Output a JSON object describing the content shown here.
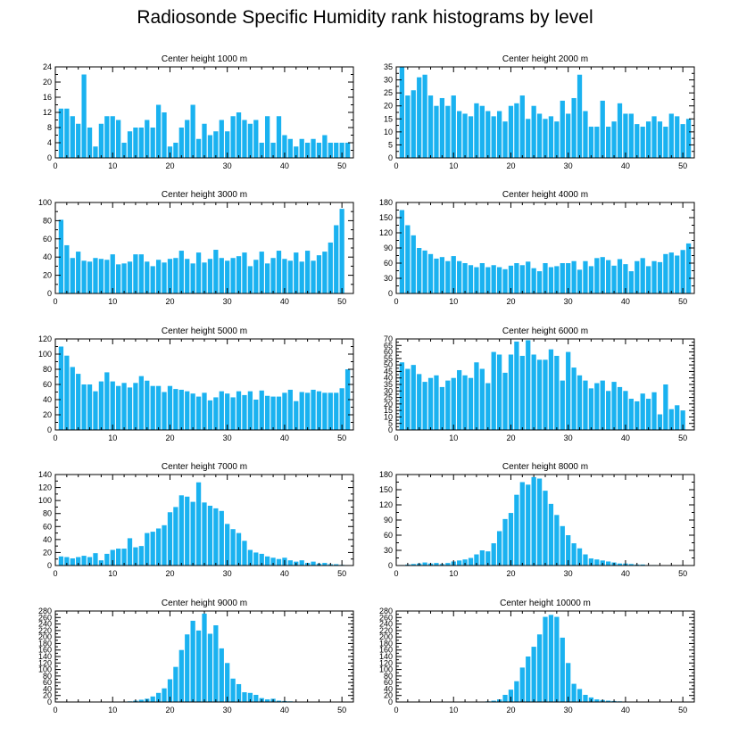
{
  "title": "Radiosonde Specific Humidity rank histograms by level",
  "colors": {
    "bar": "#1ab2f0",
    "axis": "#000000"
  },
  "chart_data": [
    {
      "type": "bar",
      "title": "Center height 1000 m",
      "xlim": [
        0,
        52
      ],
      "ylim": [
        0,
        24
      ],
      "xticks": [
        0,
        10,
        20,
        30,
        40,
        50
      ],
      "yticks": [
        0,
        4,
        8,
        12,
        16,
        20,
        24
      ],
      "x": [
        1,
        2,
        3,
        4,
        5,
        6,
        7,
        8,
        9,
        10,
        11,
        12,
        13,
        14,
        15,
        16,
        17,
        18,
        19,
        20,
        21,
        22,
        23,
        24,
        25,
        26,
        27,
        28,
        29,
        30,
        31,
        32,
        33,
        34,
        35,
        36,
        37,
        38,
        39,
        40,
        41,
        42,
        43,
        44,
        45,
        46,
        47,
        48,
        49,
        50,
        51
      ],
      "values": [
        13,
        13,
        11,
        9,
        22,
        8,
        3,
        9,
        11,
        11,
        10,
        4,
        7,
        8,
        8,
        10,
        8,
        14,
        12,
        3,
        4,
        8,
        10,
        14,
        5,
        9,
        6,
        7,
        10,
        7,
        11,
        12,
        10,
        9,
        10,
        4,
        11,
        4,
        11,
        6,
        5,
        3,
        5,
        4,
        5,
        4,
        6,
        4,
        4,
        4,
        4
      ]
    },
    {
      "type": "bar",
      "title": "Center height 2000 m",
      "xlim": [
        0,
        52
      ],
      "ylim": [
        0,
        35
      ],
      "xticks": [
        0,
        10,
        20,
        30,
        40,
        50
      ],
      "yticks": [
        0,
        5,
        10,
        15,
        20,
        25,
        30,
        35
      ],
      "x": [
        1,
        2,
        3,
        4,
        5,
        6,
        7,
        8,
        9,
        10,
        11,
        12,
        13,
        14,
        15,
        16,
        17,
        18,
        19,
        20,
        21,
        22,
        23,
        24,
        25,
        26,
        27,
        28,
        29,
        30,
        31,
        32,
        33,
        34,
        35,
        36,
        37,
        38,
        39,
        40,
        41,
        42,
        43,
        44,
        45,
        46,
        47,
        48,
        49,
        50,
        51
      ],
      "values": [
        35,
        24,
        26,
        31,
        32,
        24,
        20,
        23,
        20,
        24,
        18,
        17,
        16,
        21,
        20,
        18,
        16,
        18,
        14,
        20,
        21,
        24,
        15,
        20,
        17,
        15,
        16,
        14,
        22,
        17,
        23,
        32,
        18,
        12,
        12,
        22,
        12,
        14,
        21,
        17,
        17,
        13,
        12,
        14,
        16,
        14,
        12,
        17,
        16,
        13,
        15
      ]
    },
    {
      "type": "bar",
      "title": "Center height 3000 m",
      "xlim": [
        0,
        52
      ],
      "ylim": [
        0,
        100
      ],
      "xticks": [
        0,
        10,
        20,
        30,
        40,
        50
      ],
      "yticks": [
        0,
        20,
        40,
        60,
        80,
        100
      ],
      "x": [
        1,
        2,
        3,
        4,
        5,
        6,
        7,
        8,
        9,
        10,
        11,
        12,
        13,
        14,
        15,
        16,
        17,
        18,
        19,
        20,
        21,
        22,
        23,
        24,
        25,
        26,
        27,
        28,
        29,
        30,
        31,
        32,
        33,
        34,
        35,
        36,
        37,
        38,
        39,
        40,
        41,
        42,
        43,
        44,
        45,
        46,
        47,
        48,
        49,
        50,
        51
      ],
      "values": [
        81,
        53,
        39,
        46,
        36,
        35,
        39,
        38,
        37,
        43,
        32,
        33,
        35,
        43,
        43,
        35,
        30,
        37,
        34,
        38,
        39,
        47,
        38,
        33,
        45,
        34,
        38,
        48,
        39,
        36,
        39,
        41,
        45,
        30,
        37,
        46,
        33,
        39,
        47,
        38,
        36,
        45,
        35,
        47,
        36,
        42,
        46,
        56,
        75,
        93,
        0
      ]
    },
    {
      "type": "bar",
      "title": "Center height 4000 m",
      "xlim": [
        0,
        52
      ],
      "ylim": [
        0,
        180
      ],
      "xticks": [
        0,
        10,
        20,
        30,
        40,
        50
      ],
      "yticks": [
        0,
        30,
        60,
        90,
        120,
        150,
        180
      ],
      "x": [
        1,
        2,
        3,
        4,
        5,
        6,
        7,
        8,
        9,
        10,
        11,
        12,
        13,
        14,
        15,
        16,
        17,
        18,
        19,
        20,
        21,
        22,
        23,
        24,
        25,
        26,
        27,
        28,
        29,
        30,
        31,
        32,
        33,
        34,
        35,
        36,
        37,
        38,
        39,
        40,
        41,
        42,
        43,
        44,
        45,
        46,
        47,
        48,
        49,
        50,
        51
      ],
      "values": [
        165,
        135,
        115,
        90,
        85,
        78,
        69,
        72,
        64,
        74,
        64,
        60,
        56,
        52,
        60,
        52,
        56,
        52,
        48,
        55,
        60,
        56,
        63,
        50,
        44,
        60,
        52,
        54,
        60,
        60,
        64,
        47,
        64,
        54,
        70,
        72,
        66,
        55,
        68,
        58,
        44,
        64,
        70,
        54,
        64,
        62,
        78,
        81,
        75,
        86,
        99
      ]
    },
    {
      "type": "bar",
      "title": "Center height 5000 m",
      "xlim": [
        0,
        52
      ],
      "ylim": [
        0,
        120
      ],
      "xticks": [
        0,
        10,
        20,
        30,
        40,
        50
      ],
      "yticks": [
        0,
        20,
        40,
        60,
        80,
        100,
        120
      ],
      "x": [
        1,
        2,
        3,
        4,
        5,
        6,
        7,
        8,
        9,
        10,
        11,
        12,
        13,
        14,
        15,
        16,
        17,
        18,
        19,
        20,
        21,
        22,
        23,
        24,
        25,
        26,
        27,
        28,
        29,
        30,
        31,
        32,
        33,
        34,
        35,
        36,
        37,
        38,
        39,
        40,
        41,
        42,
        43,
        44,
        45,
        46,
        47,
        48,
        49,
        50,
        51
      ],
      "values": [
        110,
        98,
        83,
        74,
        60,
        60,
        51,
        64,
        76,
        64,
        58,
        62,
        56,
        62,
        71,
        65,
        58,
        58,
        50,
        58,
        54,
        53,
        51,
        48,
        44,
        49,
        39,
        43,
        51,
        48,
        43,
        51,
        46,
        51,
        40,
        52,
        45,
        44,
        44,
        49,
        53,
        38,
        50,
        49,
        53,
        51,
        49,
        49,
        49,
        55,
        80
      ]
    },
    {
      "type": "bar",
      "title": "Center height 6000 m",
      "xlim": [
        0,
        52
      ],
      "ylim": [
        0,
        70
      ],
      "xticks": [
        0,
        10,
        20,
        30,
        40,
        50
      ],
      "yticks": [
        0,
        5,
        10,
        15,
        20,
        25,
        30,
        35,
        40,
        45,
        50,
        55,
        60,
        65,
        70
      ],
      "x": [
        1,
        2,
        3,
        4,
        5,
        6,
        7,
        8,
        9,
        10,
        11,
        12,
        13,
        14,
        15,
        16,
        17,
        18,
        19,
        20,
        21,
        22,
        23,
        24,
        25,
        26,
        27,
        28,
        29,
        30,
        31,
        32,
        33,
        34,
        35,
        36,
        37,
        38,
        39,
        40,
        41,
        42,
        43,
        44,
        45,
        46,
        47,
        48,
        49,
        50,
        51
      ],
      "values": [
        52,
        47,
        50,
        43,
        37,
        40,
        42,
        33,
        38,
        40,
        46,
        42,
        40,
        52,
        47,
        36,
        60,
        58,
        44,
        58,
        68,
        57,
        69,
        58,
        54,
        54,
        62,
        57,
        38,
        60,
        48,
        42,
        38,
        32,
        36,
        38,
        30,
        37,
        33,
        30,
        24,
        22,
        28,
        24,
        29,
        12,
        35,
        16,
        19,
        15,
        0
      ]
    },
    {
      "type": "bar",
      "title": "Center height 7000 m",
      "xlim": [
        0,
        52
      ],
      "ylim": [
        0,
        140
      ],
      "xticks": [
        0,
        10,
        20,
        30,
        40,
        50
      ],
      "yticks": [
        0,
        20,
        40,
        60,
        80,
        100,
        120,
        140
      ],
      "x": [
        1,
        2,
        3,
        4,
        5,
        6,
        7,
        8,
        9,
        10,
        11,
        12,
        13,
        14,
        15,
        16,
        17,
        18,
        19,
        20,
        21,
        22,
        23,
        24,
        25,
        26,
        27,
        28,
        29,
        30,
        31,
        32,
        33,
        34,
        35,
        36,
        37,
        38,
        39,
        40,
        41,
        42,
        43,
        44,
        45,
        46,
        47,
        48,
        49,
        50,
        51
      ],
      "values": [
        14,
        13,
        11,
        13,
        15,
        13,
        19,
        8,
        18,
        24,
        26,
        26,
        42,
        28,
        30,
        50,
        52,
        57,
        62,
        82,
        90,
        108,
        106,
        98,
        128,
        97,
        92,
        88,
        84,
        64,
        56,
        50,
        38,
        24,
        20,
        18,
        14,
        12,
        10,
        12,
        8,
        6,
        8,
        4,
        6,
        3,
        4,
        2,
        2,
        1,
        0
      ]
    },
    {
      "type": "bar",
      "title": "Center height 8000 m",
      "xlim": [
        0,
        52
      ],
      "ylim": [
        0,
        180
      ],
      "xticks": [
        0,
        10,
        20,
        30,
        40,
        50
      ],
      "yticks": [
        0,
        30,
        60,
        90,
        120,
        150,
        180
      ],
      "x": [
        1,
        2,
        3,
        4,
        5,
        6,
        7,
        8,
        9,
        10,
        11,
        12,
        13,
        14,
        15,
        16,
        17,
        18,
        19,
        20,
        21,
        22,
        23,
        24,
        25,
        26,
        27,
        28,
        29,
        30,
        31,
        32,
        33,
        34,
        35,
        36,
        37,
        38,
        39,
        40,
        41,
        42,
        43,
        44,
        45,
        46,
        47,
        48,
        49,
        50,
        51
      ],
      "values": [
        1,
        2,
        3,
        4,
        6,
        4,
        5,
        3,
        5,
        8,
        10,
        12,
        15,
        22,
        30,
        28,
        44,
        68,
        92,
        104,
        140,
        165,
        160,
        175,
        172,
        148,
        122,
        100,
        78,
        60,
        44,
        34,
        22,
        14,
        12,
        10,
        8,
        6,
        4,
        4,
        3,
        2,
        2,
        1,
        1,
        0,
        0,
        0,
        0,
        0,
        0
      ]
    },
    {
      "type": "bar",
      "title": "Center height 9000 m",
      "xlim": [
        0,
        52
      ],
      "ylim": [
        0,
        280
      ],
      "xticks": [
        0,
        10,
        20,
        30,
        40,
        50
      ],
      "yticks": [
        0,
        20,
        40,
        60,
        80,
        100,
        120,
        140,
        160,
        180,
        200,
        220,
        240,
        260,
        280
      ],
      "x": [
        1,
        2,
        3,
        4,
        5,
        6,
        7,
        8,
        9,
        10,
        11,
        12,
        13,
        14,
        15,
        16,
        17,
        18,
        19,
        20,
        21,
        22,
        23,
        24,
        25,
        26,
        27,
        28,
        29,
        30,
        31,
        32,
        33,
        34,
        35,
        36,
        37,
        38,
        39,
        40,
        41,
        42,
        43,
        44,
        45,
        46,
        47,
        48,
        49,
        50,
        51
      ],
      "values": [
        0,
        0,
        0,
        0,
        0,
        0,
        0,
        0,
        0,
        0,
        1,
        1,
        2,
        4,
        7,
        10,
        17,
        28,
        42,
        70,
        108,
        160,
        208,
        250,
        220,
        272,
        210,
        236,
        165,
        120,
        72,
        55,
        30,
        28,
        22,
        12,
        8,
        10,
        4,
        3,
        2,
        1,
        0,
        0,
        0,
        0,
        0,
        0,
        0,
        0,
        0
      ]
    },
    {
      "type": "bar",
      "title": "Center height 10000 m",
      "xlim": [
        0,
        52
      ],
      "ylim": [
        0,
        280
      ],
      "xticks": [
        0,
        10,
        20,
        30,
        40,
        50
      ],
      "yticks": [
        0,
        20,
        40,
        60,
        80,
        100,
        120,
        140,
        160,
        180,
        200,
        220,
        240,
        260,
        280
      ],
      "x": [
        1,
        2,
        3,
        4,
        5,
        6,
        7,
        8,
        9,
        10,
        11,
        12,
        13,
        14,
        15,
        16,
        17,
        18,
        19,
        20,
        21,
        22,
        23,
        24,
        25,
        26,
        27,
        28,
        29,
        30,
        31,
        32,
        33,
        34,
        35,
        36,
        37,
        38,
        39,
        40,
        41,
        42,
        43,
        44,
        45,
        46,
        47,
        48,
        49,
        50,
        51
      ],
      "values": [
        0,
        0,
        0,
        0,
        0,
        0,
        0,
        0,
        0,
        0,
        0,
        0,
        0,
        0,
        0,
        2,
        4,
        8,
        22,
        38,
        64,
        106,
        140,
        170,
        208,
        262,
        268,
        262,
        198,
        120,
        56,
        40,
        22,
        14,
        8,
        6,
        4,
        3,
        2,
        1,
        1,
        0,
        0,
        0,
        0,
        0,
        0,
        0,
        0,
        0,
        0
      ]
    }
  ]
}
